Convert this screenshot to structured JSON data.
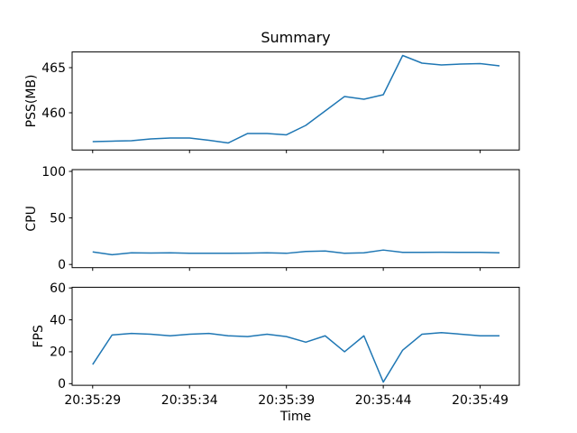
{
  "figure": {
    "title": "Summary",
    "xlabel": "Time",
    "background": "#ffffff",
    "line_color": "#1f77b4"
  },
  "x_axis": {
    "tick_labels": [
      "20:35:29",
      "20:35:34",
      "20:35:39",
      "20:35:44",
      "20:35:49"
    ],
    "tick_positions": [
      0,
      5,
      10,
      15,
      20
    ],
    "xlim": [
      -1.06,
      22.02
    ],
    "x_start_time": "20:35:29",
    "x_step_seconds": 1
  },
  "chart_data": [
    {
      "type": "line",
      "name": "PSS",
      "ylabel": "PSS(MB)",
      "legend": "none",
      "grid": false,
      "x": [
        0,
        1,
        2,
        3,
        4,
        5,
        6,
        7,
        8,
        9,
        10,
        11,
        12,
        13,
        14,
        15,
        16,
        17,
        18,
        19,
        20,
        21
      ],
      "values": [
        456.8,
        456.85,
        456.9,
        457.1,
        457.2,
        457.2,
        456.95,
        456.65,
        457.7,
        457.7,
        457.55,
        458.6,
        460.2,
        461.8,
        461.5,
        462.0,
        466.35,
        465.5,
        465.3,
        465.4,
        465.45,
        465.2
      ],
      "yticks": [
        460,
        465
      ],
      "ylim": [
        455.87,
        466.74
      ]
    },
    {
      "type": "line",
      "name": "CPU",
      "ylabel": "CPU",
      "legend": "none",
      "grid": false,
      "x": [
        0,
        1,
        2,
        3,
        4,
        5,
        6,
        7,
        8,
        9,
        10,
        11,
        12,
        13,
        14,
        15,
        16,
        17,
        18,
        19,
        20,
        21
      ],
      "values": [
        13.5,
        10.5,
        12.5,
        12.3,
        12.5,
        12.0,
        12.0,
        12.0,
        12.2,
        12.5,
        12.0,
        14.0,
        14.5,
        12.0,
        12.5,
        15.5,
        13.0,
        13.0,
        13.2,
        13.0,
        13.0,
        12.5
      ],
      "yticks": [
        0,
        50,
        100
      ],
      "ylim": [
        -3.4,
        101.9
      ]
    },
    {
      "type": "line",
      "name": "FPS",
      "ylabel": "FPS",
      "legend": "none",
      "grid": false,
      "x": [
        0,
        1,
        2,
        3,
        4,
        5,
        6,
        7,
        8,
        9,
        10,
        11,
        12,
        13,
        14,
        15,
        16,
        17,
        18,
        19,
        20,
        21
      ],
      "values": [
        12.0,
        30.5,
        31.5,
        31.0,
        30.0,
        31.0,
        31.5,
        30.0,
        29.5,
        31.0,
        29.5,
        26.0,
        30.0,
        20.0,
        30.0,
        1.0,
        21.0,
        31.0,
        32.0,
        31.0,
        30.0,
        30.0
      ],
      "yticks": [
        0,
        20,
        40,
        60
      ],
      "ylim": [
        -1.02,
        60.42
      ]
    }
  ]
}
